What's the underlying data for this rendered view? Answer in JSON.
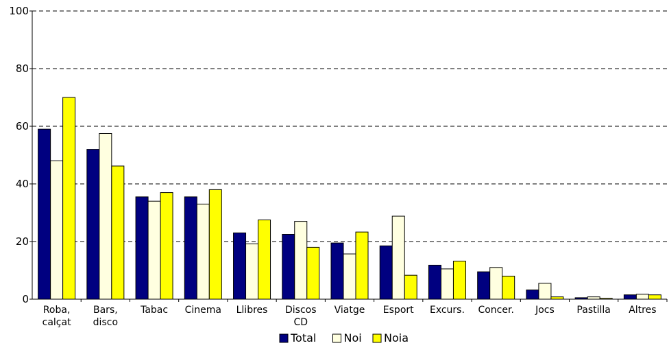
{
  "chart_data": {
    "type": "bar",
    "title": "",
    "xlabel": "",
    "ylabel": "",
    "ylim": [
      0,
      100
    ],
    "yticks": [
      0,
      20,
      40,
      60,
      80,
      100
    ],
    "grid": "horizontal dashed",
    "legend_position": "bottom-center",
    "categories": [
      [
        "Roba,",
        "calçat"
      ],
      [
        "Bars,",
        "disco"
      ],
      [
        "Tabac"
      ],
      [
        "Cinema"
      ],
      [
        "Llibres"
      ],
      [
        "Discos",
        "CD"
      ],
      [
        "Viatge"
      ],
      [
        "Esport"
      ],
      [
        "Excurs."
      ],
      [
        "Concer."
      ],
      [
        "Jocs"
      ],
      [
        "Pastilla"
      ],
      [
        "Altres"
      ]
    ],
    "series": [
      {
        "name": "Total",
        "color": "#000080",
        "values": [
          59.0,
          52.0,
          35.5,
          35.5,
          23.0,
          22.5,
          19.5,
          18.5,
          11.8,
          9.5,
          3.2,
          0.5,
          1.5
        ]
      },
      {
        "name": "Noi",
        "color": "#FFFFE0",
        "values": [
          48.0,
          57.5,
          34.0,
          33.0,
          19.2,
          27.0,
          15.7,
          28.8,
          10.5,
          11.0,
          5.5,
          0.8,
          1.7
        ]
      },
      {
        "name": "Noia",
        "color": "#FFFF00",
        "values": [
          70.0,
          46.2,
          37.0,
          38.0,
          27.5,
          18.0,
          23.3,
          8.3,
          13.2,
          8.0,
          0.8,
          0.3,
          1.5
        ]
      }
    ]
  }
}
